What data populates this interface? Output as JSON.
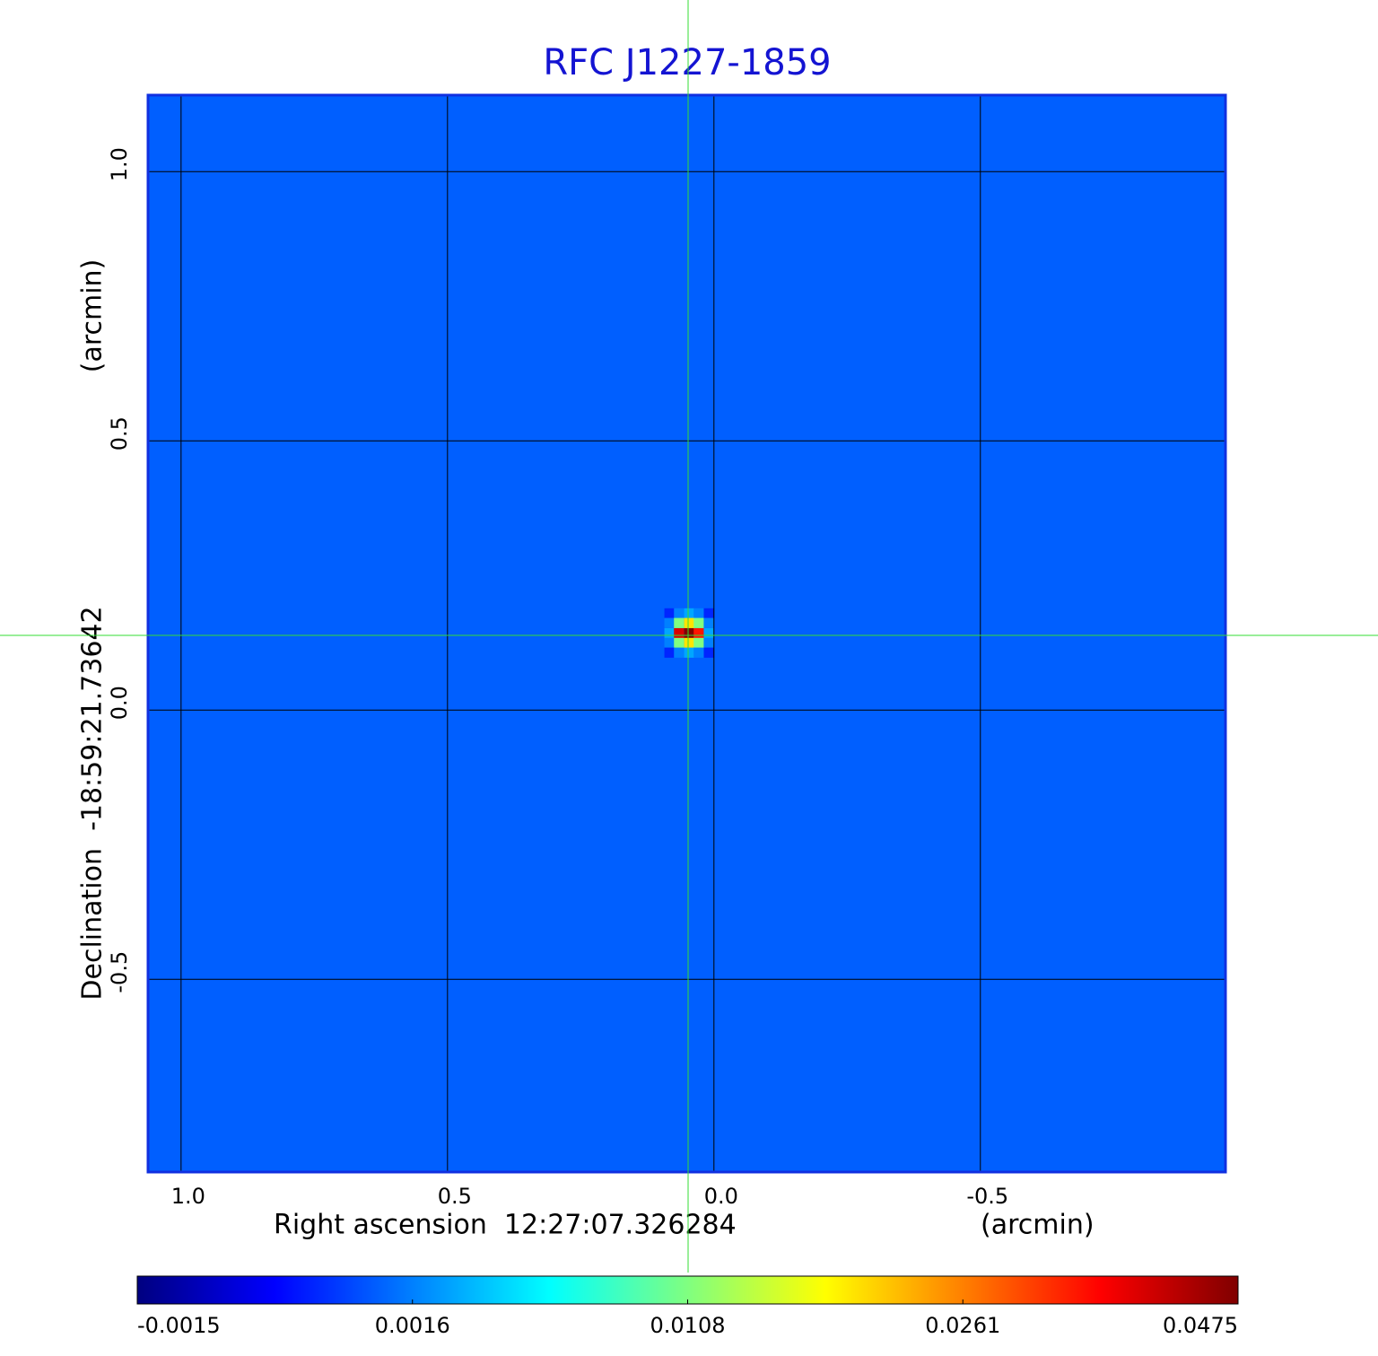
{
  "chart_data": {
    "type": "image",
    "title": "RFC J1227-1859",
    "x_label": "Right ascension  12:27:07.326284",
    "x_unit": "(arcmin)",
    "y_label": "Declination  -18:59:21.73642",
    "y_unit": "(arcmin)",
    "xlim": [
      1.062,
      -0.96
    ],
    "ylim": [
      -0.858,
      1.142
    ],
    "xticks": [
      {
        "value": 1,
        "label": "1.0"
      },
      {
        "value": 0.5,
        "label": "0.5"
      },
      {
        "value": 0,
        "label": "0.0"
      },
      {
        "value": -0.5,
        "label": "-0.5"
      }
    ],
    "yticks": [
      {
        "value": 1,
        "label": "1.0"
      },
      {
        "value": 0.5,
        "label": "0.5"
      },
      {
        "value": 0,
        "label": "0.0"
      },
      {
        "value": -0.5,
        "label": "-0.5"
      }
    ],
    "grid": true,
    "colormap": "jet",
    "colorbar_ticks": [
      -0.0015,
      0.0016,
      0.0108,
      0.0261,
      0.0475
    ],
    "background": 0.0012,
    "x": [
      0.084,
      0.066,
      0.047,
      0.029,
      0.01
    ],
    "y": [
      0.18,
      0.162,
      0.143,
      0.125,
      0.107
    ],
    "values": [
      [
        0.0005,
        0.0016,
        0.003,
        0.0016,
        0.0005
      ],
      [
        0.0016,
        0.0108,
        0.02,
        0.0108,
        0.0016
      ],
      [
        0.003,
        0.04,
        0.0475,
        0.035,
        0.003
      ],
      [
        0.0016,
        0.0108,
        0.02,
        0.0108,
        0.0016
      ],
      [
        0.0005,
        0.0016,
        0.003,
        0.0016,
        0.0005
      ]
    ]
  }
}
